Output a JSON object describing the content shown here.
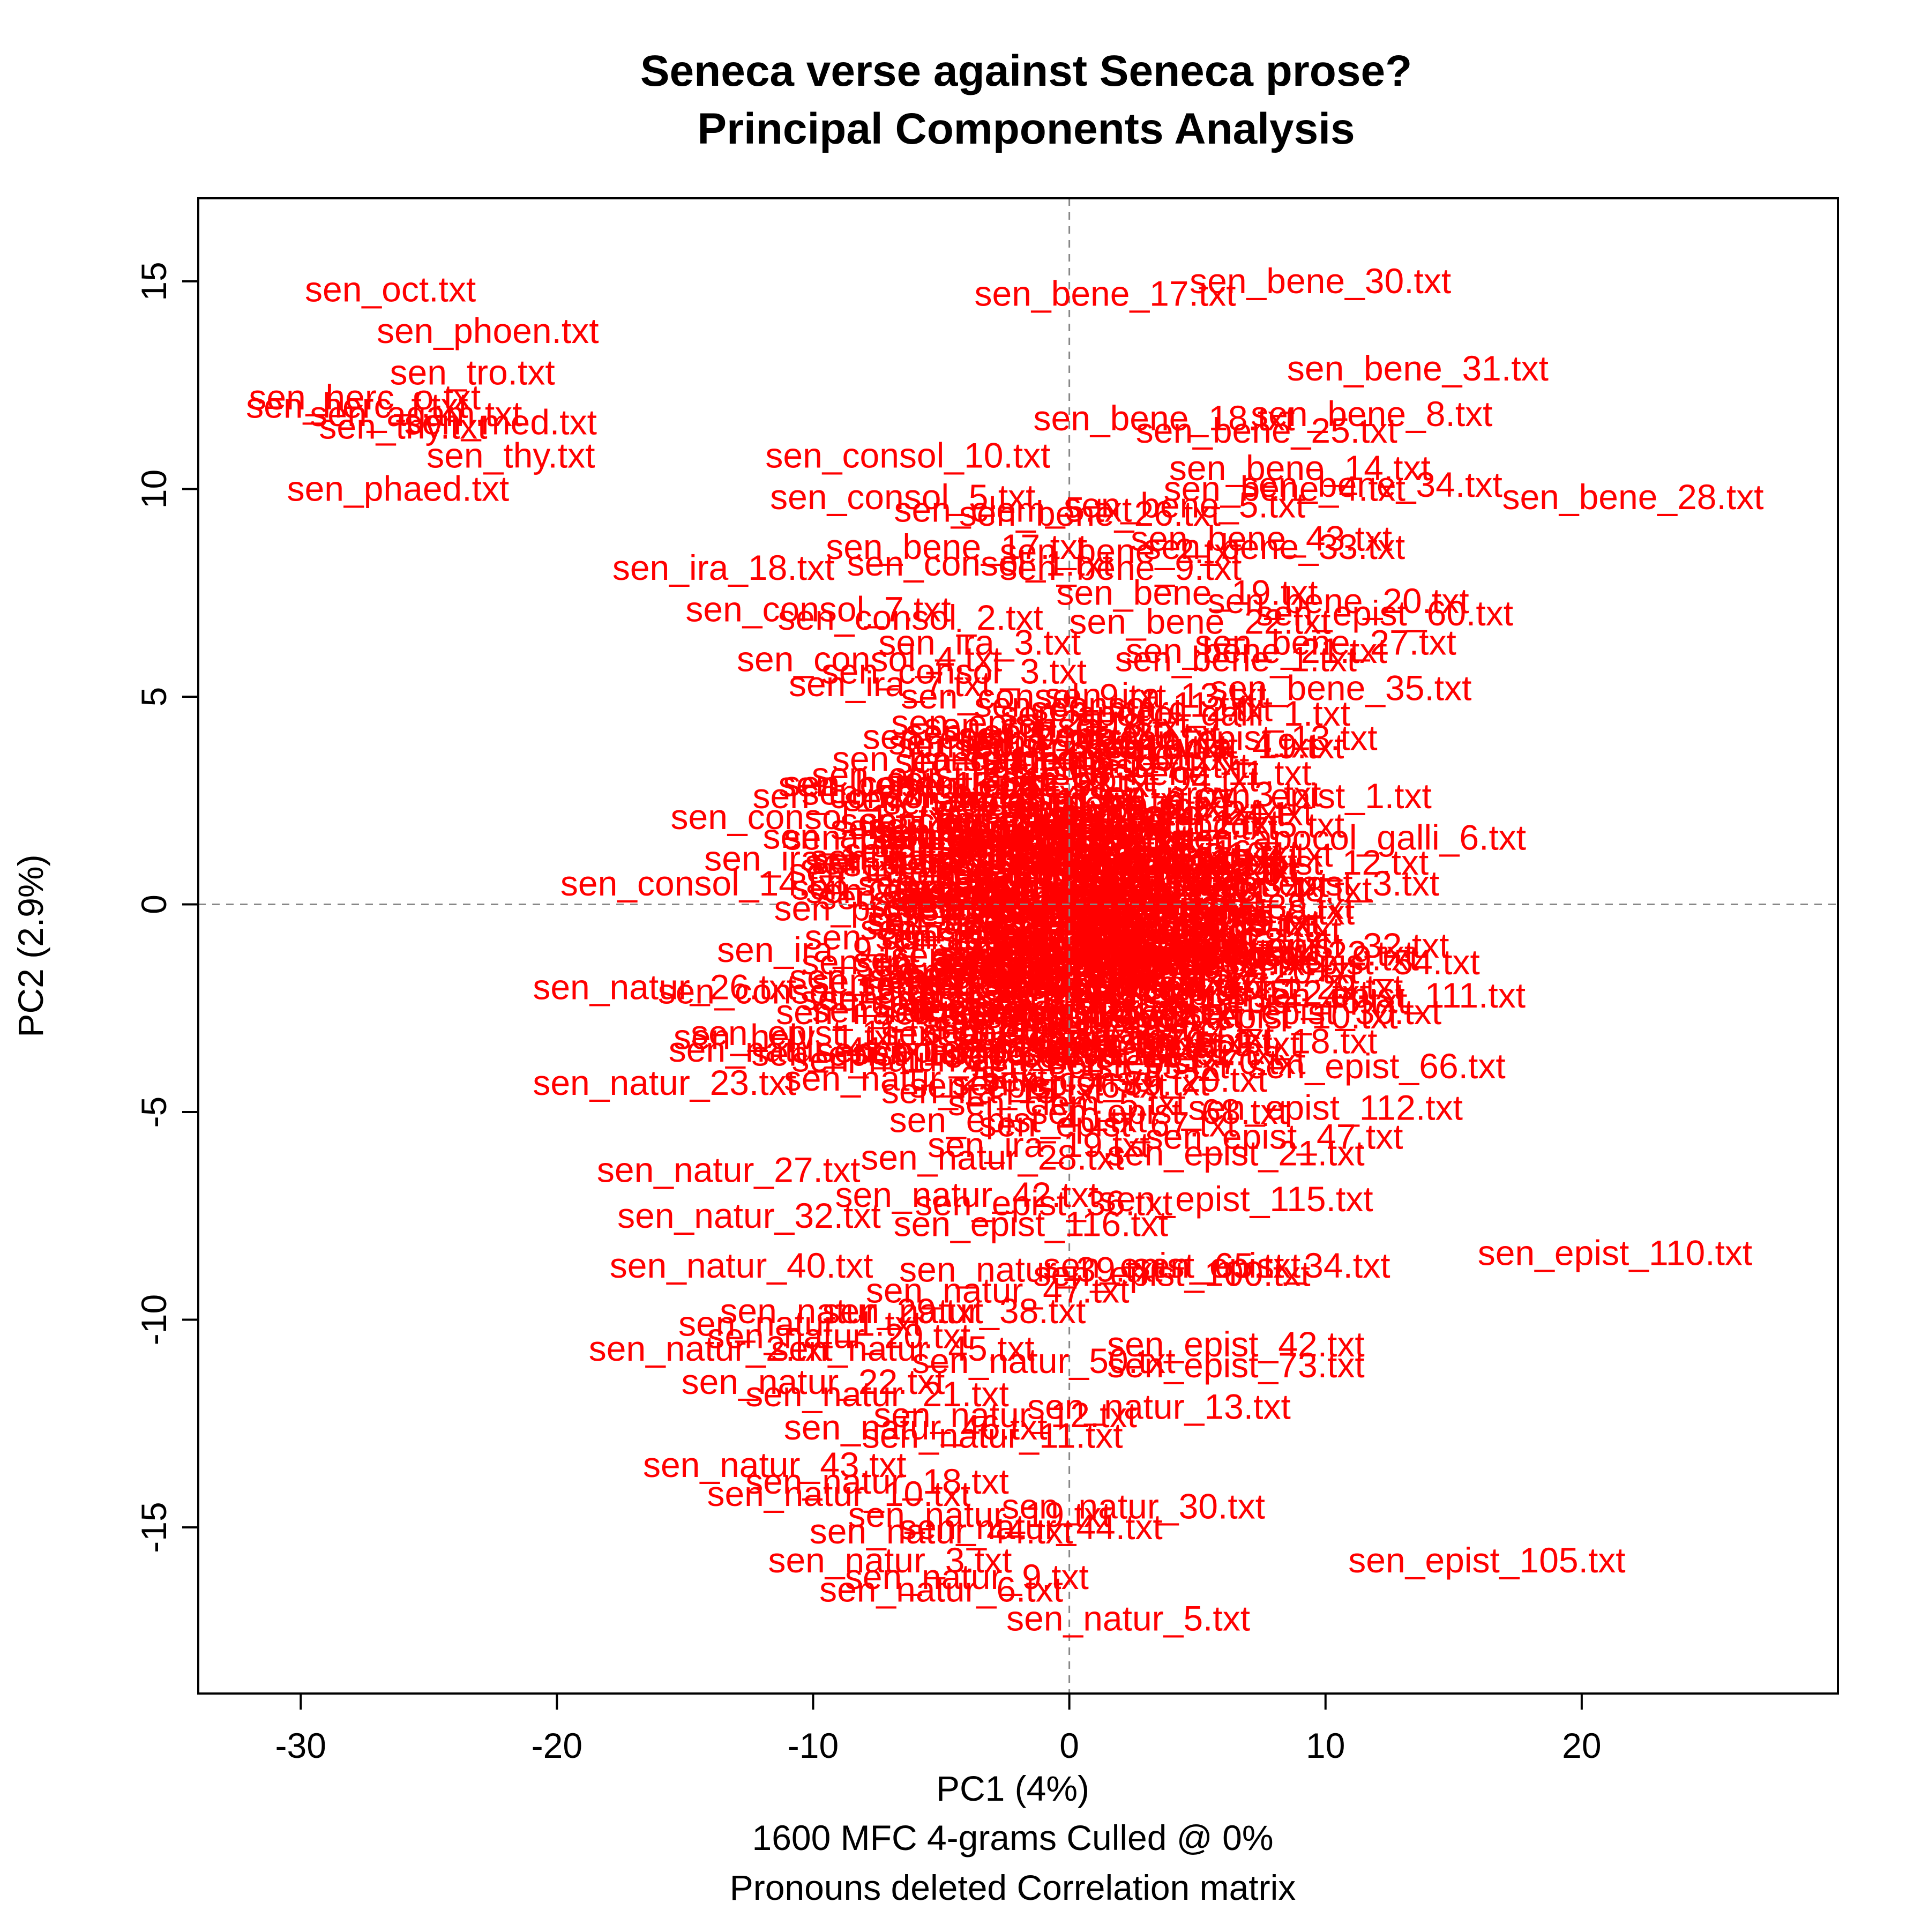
{
  "chart_data": {
    "type": "scatter",
    "title": [
      "Seneca verse against Seneca prose?",
      "Principal Components Analysis"
    ],
    "xlabel": "PC1 (4%)",
    "ylabel": "PC2 (2.9%)",
    "subtitle": [
      "1600 MFC 4-grams Culled @ 0%",
      "Pronouns deleted Correlation matrix"
    ],
    "xlim": [
      -34,
      30
    ],
    "ylim": [
      -19,
      17
    ],
    "xticks": [
      -30,
      -20,
      -10,
      0,
      10,
      20
    ],
    "xtick_labels": [
      "-30",
      "-20",
      "-10",
      "0",
      "10",
      "20"
    ],
    "yticks": [
      -15,
      -10,
      -5,
      0,
      5,
      10,
      15
    ],
    "ytick_labels": [
      "-15",
      "-10",
      "-5",
      "0",
      "5",
      "10",
      "15"
    ],
    "zero_lines": true,
    "grid": false,
    "label_color": "#ff0000",
    "points": [
      {
        "x": -26.5,
        "y": 14.8,
        "label": "sen_oct.txt"
      },
      {
        "x": -22.7,
        "y": 13.8,
        "label": "sen_phoen.txt"
      },
      {
        "x": -23.3,
        "y": 12.8,
        "label": "sen_tro.txt"
      },
      {
        "x": -27.5,
        "y": 12.2,
        "label": "sen_herc_o.txt"
      },
      {
        "x": -27.8,
        "y": 12.0,
        "label": "sen_herc_f.txt"
      },
      {
        "x": -25.5,
        "y": 11.8,
        "label": "sen_agam.txt"
      },
      {
        "x": -22.2,
        "y": 11.6,
        "label": "sen_med.txt"
      },
      {
        "x": -26.0,
        "y": 11.5,
        "label": "sen_thy.txt"
      },
      {
        "x": -21.8,
        "y": 10.8,
        "label": "sen_thy.txt"
      },
      {
        "x": -26.2,
        "y": 10.0,
        "label": "sen_phaed.txt"
      },
      {
        "x": 1.4,
        "y": 14.7,
        "label": "sen_bene_17.txt"
      },
      {
        "x": 9.8,
        "y": 15.0,
        "label": "sen_bene_30.txt"
      },
      {
        "x": 13.6,
        "y": 12.9,
        "label": "sen_bene_31.txt"
      },
      {
        "x": 3.7,
        "y": 11.7,
        "label": "sen_bene_18.txt"
      },
      {
        "x": 11.8,
        "y": 11.8,
        "label": "sen_bene_8.txt"
      },
      {
        "x": 7.7,
        "y": 11.4,
        "label": "sen_bene_25.txt"
      },
      {
        "x": 9.0,
        "y": 10.5,
        "label": "sen_bene_14.txt"
      },
      {
        "x": 8.4,
        "y": 10.0,
        "label": "sen_bene_4.txt"
      },
      {
        "x": 11.8,
        "y": 10.1,
        "label": "sen_bene_34.txt"
      },
      {
        "x": 22.0,
        "y": 9.8,
        "label": "sen_bene_28.txt"
      },
      {
        "x": 4.5,
        "y": 9.6,
        "label": "sen_bene_5.txt"
      },
      {
        "x": -6.3,
        "y": 10.8,
        "label": "sen_consol_10.txt"
      },
      {
        "x": -6.5,
        "y": 9.8,
        "label": "sen_consol_5.txt"
      },
      {
        "x": -2.2,
        "y": 9.5,
        "label": "sen_clem_5.txt"
      },
      {
        "x": 0.8,
        "y": 9.4,
        "label": "sen_bene_26.txt"
      },
      {
        "x": 7.5,
        "y": 8.8,
        "label": "sen_bene_43.txt"
      },
      {
        "x": 8.0,
        "y": 8.6,
        "label": "sen_bene_33.txt"
      },
      {
        "x": -4.4,
        "y": 8.6,
        "label": "sen_bene_17.txt"
      },
      {
        "x": 2.0,
        "y": 8.5,
        "label": "sen_bene_2.txt"
      },
      {
        "x": -13.5,
        "y": 8.1,
        "label": "sen_ira_18.txt"
      },
      {
        "x": -3.5,
        "y": 8.2,
        "label": "sen_consol_1.txt"
      },
      {
        "x": 2.0,
        "y": 8.1,
        "label": "sen_bene_9.txt"
      },
      {
        "x": 4.6,
        "y": 7.5,
        "label": "sen_bene_19.txt"
      },
      {
        "x": 10.5,
        "y": 7.3,
        "label": "sen_bene_20.txt"
      },
      {
        "x": -9.8,
        "y": 7.1,
        "label": "sen_consol_7.txt"
      },
      {
        "x": 12.3,
        "y": 7.0,
        "label": "sen_epist_60.txt"
      },
      {
        "x": -6.2,
        "y": 6.9,
        "label": "sen_consol_2.txt"
      },
      {
        "x": 5.1,
        "y": 6.8,
        "label": "sen_bene_22.txt"
      },
      {
        "x": 10.0,
        "y": 6.3,
        "label": "sen_bene_27.txt"
      },
      {
        "x": -3.5,
        "y": 6.3,
        "label": "sen_ira_3.txt"
      },
      {
        "x": 7.3,
        "y": 6.1,
        "label": "sen_bene_21.txt"
      },
      {
        "x": 6.5,
        "y": 5.9,
        "label": "sen_bene_1.txt"
      },
      {
        "x": -7.8,
        "y": 5.9,
        "label": "sen_consol_4.txt"
      },
      {
        "x": -4.5,
        "y": 5.6,
        "label": "sen_consol_3.txt"
      },
      {
        "x": -7.0,
        "y": 5.3,
        "label": "sen_ira_7.txt"
      },
      {
        "x": 10.6,
        "y": 5.2,
        "label": "sen_bene_35.txt"
      },
      {
        "x": -1.4,
        "y": 5.0,
        "label": "sen_consol_9.txt"
      },
      {
        "x": 1.8,
        "y": 4.8,
        "label": "sen_consol_11.txt"
      },
      {
        "x": -0.5,
        "y": 4.3,
        "label": "sen_consol_8.txt"
      },
      {
        "x": 7.0,
        "y": 4.0,
        "label": "sen_epist_13.txt"
      },
      {
        "x": 5.7,
        "y": 3.8,
        "label": "sen_epist_19.txt"
      },
      {
        "x": -2.3,
        "y": 3.9,
        "label": "sen_tranq_2.txt"
      },
      {
        "x": -4.5,
        "y": 3.5,
        "label": "sen_tranq_1.txt"
      },
      {
        "x": -2.8,
        "y": 3.0,
        "label": "sen_ira_12.txt"
      },
      {
        "x": -6.0,
        "y": 2.9,
        "label": "sen_consol_6.txt"
      },
      {
        "x": 9.5,
        "y": 2.6,
        "label": "sen_epist_1.txt"
      },
      {
        "x": -6.8,
        "y": 2.6,
        "label": "sen_consol_12.txt"
      },
      {
        "x": -10.0,
        "y": 2.1,
        "label": "sen_consol_13.txt"
      },
      {
        "x": -4.3,
        "y": 2.0,
        "label": "sen_clem_1.txt"
      },
      {
        "x": 11.0,
        "y": 1.6,
        "label": "sen_apocol_galli_6.txt"
      },
      {
        "x": -6.5,
        "y": 1.6,
        "label": "sen_clem_2.txt"
      },
      {
        "x": 9.0,
        "y": 1.0,
        "label": "sen_epist_12.txt"
      },
      {
        "x": -10.3,
        "y": 1.1,
        "label": "sen_ira_1.txt"
      },
      {
        "x": -7.0,
        "y": 0.8,
        "label": "sen_ira_4.txt"
      },
      {
        "x": 9.8,
        "y": 0.5,
        "label": "sen_epist_3.txt"
      },
      {
        "x": -14.3,
        "y": 0.5,
        "label": "sen_consol_14.txt"
      },
      {
        "x": -6.2,
        "y": 0.4,
        "label": "sen_clem_3.txt"
      },
      {
        "x": -7.0,
        "y": -0.1,
        "label": "sen_prov_1.txt"
      },
      {
        "x": 6.5,
        "y": -0.2,
        "label": "sen_epist_8.txt"
      },
      {
        "x": -5.5,
        "y": -0.8,
        "label": "sen_const_1.txt"
      },
      {
        "x": 9.8,
        "y": -1.0,
        "label": "sen_epist_32.txt"
      },
      {
        "x": -9.8,
        "y": -1.1,
        "label": "sen_ira_9.txt"
      },
      {
        "x": 9.0,
        "y": -1.3,
        "label": "sen_epist_9.txt"
      },
      {
        "x": -6.5,
        "y": -1.4,
        "label": "sen_ira_2.txt"
      },
      {
        "x": 11.0,
        "y": -1.4,
        "label": "sen_epist_54.txt"
      },
      {
        "x": -15.8,
        "y": -2.0,
        "label": "sen_natur_26.txt"
      },
      {
        "x": -10.5,
        "y": -2.1,
        "label": "sen_consol_15.txt"
      },
      {
        "x": 8.0,
        "y": -2.0,
        "label": "sen_epist_29.txt"
      },
      {
        "x": 12.5,
        "y": -2.2,
        "label": "sen_epist_111.txt"
      },
      {
        "x": -7.5,
        "y": -2.6,
        "label": "sen_ira_6.txt"
      },
      {
        "x": 7.8,
        "y": -2.7,
        "label": "sen_epist_10.txt"
      },
      {
        "x": 9.5,
        "y": -2.6,
        "label": "sen_epist_30.txt"
      },
      {
        "x": -9.8,
        "y": -3.1,
        "label": "sen_epist_11.txt"
      },
      {
        "x": -11.0,
        "y": -3.2,
        "label": "sen_helv_1.txt"
      },
      {
        "x": 7.0,
        "y": -3.3,
        "label": "sen_epist_18.txt"
      },
      {
        "x": -10.5,
        "y": -3.5,
        "label": "sen_natur_41.txt"
      },
      {
        "x": -7.0,
        "y": -3.6,
        "label": "sen_epist_107.txt"
      },
      {
        "x": 4.2,
        "y": -3.8,
        "label": "sen_epist_70.txt"
      },
      {
        "x": 12.0,
        "y": -3.9,
        "label": "sen_epist_66.txt"
      },
      {
        "x": 1.2,
        "y": -3.9,
        "label": "sen_epist_55.txt"
      },
      {
        "x": -15.8,
        "y": -4.3,
        "label": "sen_natur_23.txt"
      },
      {
        "x": -6.0,
        "y": -4.2,
        "label": "sen_natur_25.txt"
      },
      {
        "x": -3.0,
        "y": -4.5,
        "label": "sen_ira_15.txt"
      },
      {
        "x": 10.0,
        "y": -4.9,
        "label": "sen_epist_112.txt"
      },
      {
        "x": 3.5,
        "y": -5.0,
        "label": "sen_epist_68.txt"
      },
      {
        "x": -2.0,
        "y": -5.2,
        "label": "sen_epist_40.txt"
      },
      {
        "x": 1.5,
        "y": -5.3,
        "label": "sen_epist_67.txt"
      },
      {
        "x": 8.0,
        "y": -5.6,
        "label": "sen_epist_47.txt"
      },
      {
        "x": -1.2,
        "y": -5.8,
        "label": "sen_ira_19.txt"
      },
      {
        "x": 6.5,
        "y": -6.0,
        "label": "sen_epist_21.txt"
      },
      {
        "x": -3.0,
        "y": -6.1,
        "label": "sen_natur_28.txt"
      },
      {
        "x": -13.3,
        "y": -6.4,
        "label": "sen_natur_27.txt"
      },
      {
        "x": -4.0,
        "y": -7.0,
        "label": "sen_natur_42.txt"
      },
      {
        "x": 6.5,
        "y": -7.1,
        "label": "sen_epist_115.txt"
      },
      {
        "x": -1.0,
        "y": -7.2,
        "label": "sen_epist_36.txt"
      },
      {
        "x": -12.5,
        "y": -7.5,
        "label": "sen_natur_32.txt"
      },
      {
        "x": -1.5,
        "y": -7.7,
        "label": "sen_epist_116.txt"
      },
      {
        "x": -12.8,
        "y": -8.7,
        "label": "sen_natur_40.txt"
      },
      {
        "x": -1.5,
        "y": -8.8,
        "label": "sen_natur_39.txt"
      },
      {
        "x": 4.0,
        "y": -8.7,
        "label": "sen_epist_65.txt"
      },
      {
        "x": 7.5,
        "y": -8.7,
        "label": "sen_epist_34.txt"
      },
      {
        "x": 4.0,
        "y": -8.9,
        "label": "sen_epist_100.txt"
      },
      {
        "x": 21.3,
        "y": -8.4,
        "label": "sen_epist_110.txt"
      },
      {
        "x": -2.8,
        "y": -9.3,
        "label": "sen_natur_47.txt"
      },
      {
        "x": -8.5,
        "y": -9.8,
        "label": "sen_natur_29.txt"
      },
      {
        "x": -4.5,
        "y": -9.8,
        "label": "sen_natur_38.txt"
      },
      {
        "x": -10.5,
        "y": -10.1,
        "label": "sen_natur_1.txt"
      },
      {
        "x": -9.0,
        "y": -10.4,
        "label": "sen_natur_20.txt"
      },
      {
        "x": -14.0,
        "y": -10.7,
        "label": "sen_natur_2.txt"
      },
      {
        "x": -6.5,
        "y": -10.7,
        "label": "sen_natur_45.txt"
      },
      {
        "x": 6.5,
        "y": -10.6,
        "label": "sen_epist_42.txt"
      },
      {
        "x": -1.0,
        "y": -11.0,
        "label": "sen_natur_50.txt"
      },
      {
        "x": 6.5,
        "y": -11.1,
        "label": "sen_epist_73.txt"
      },
      {
        "x": -10.0,
        "y": -11.5,
        "label": "sen_natur_22.txt"
      },
      {
        "x": -7.5,
        "y": -11.8,
        "label": "sen_natur_21.txt"
      },
      {
        "x": 3.5,
        "y": -12.1,
        "label": "sen_natur_13.txt"
      },
      {
        "x": -2.5,
        "y": -12.3,
        "label": "sen_natur_12.txt"
      },
      {
        "x": -6.0,
        "y": -12.6,
        "label": "sen_natur_46.txt"
      },
      {
        "x": -3.0,
        "y": -12.8,
        "label": "sen_natur_11.txt"
      },
      {
        "x": -11.5,
        "y": -13.5,
        "label": "sen_natur_43.txt"
      },
      {
        "x": -7.5,
        "y": -13.9,
        "label": "sen_natur_18.txt"
      },
      {
        "x": -9.0,
        "y": -14.2,
        "label": "sen_natur_10.txt"
      },
      {
        "x": -3.5,
        "y": -14.7,
        "label": "sen_natur_19.txt"
      },
      {
        "x": 2.5,
        "y": -14.5,
        "label": "sen_natur_30.txt"
      },
      {
        "x": -5.0,
        "y": -15.1,
        "label": "sen_natur_44.txt"
      },
      {
        "x": -1.5,
        "y": -15.0,
        "label": "sen_natur_44.txt"
      },
      {
        "x": 16.3,
        "y": -15.8,
        "label": "sen_epist_105.txt"
      },
      {
        "x": -7.0,
        "y": -15.8,
        "label": "sen_natur_3.txt"
      },
      {
        "x": -4.0,
        "y": -16.2,
        "label": "sen_natur_9.txt"
      },
      {
        "x": -5.0,
        "y": -16.5,
        "label": "sen_natur_6.txt"
      },
      {
        "x": 2.3,
        "y": -17.2,
        "label": "sen_natur_5.txt"
      }
    ],
    "dense_core": {
      "x_range": [
        -8,
        10
      ],
      "y_range": [
        -6,
        6
      ],
      "labels": [
        "sen_ira_1.txt",
        "sen_ira_2.txt",
        "sen_ira_3.txt",
        "sen_ira_4.txt",
        "sen_ira_5.txt",
        "sen_ira_6.txt",
        "sen_ira_7.txt",
        "sen_ira_8.txt",
        "sen_ira_9.txt",
        "sen_ira_10.txt",
        "sen_ira_11.txt",
        "sen_ira_12.txt",
        "sen_ira_13.txt",
        "sen_ira_14.txt",
        "sen_ira_15.txt",
        "sen_ira_16.txt",
        "sen_ira_17.txt",
        "sen_clem_1.txt",
        "sen_clem_2.txt",
        "sen_clem_3.txt",
        "sen_clem_4.txt",
        "sen_clem_5.txt",
        "sen_brev_1.txt",
        "sen_brev_2.txt",
        "sen_brev_3.txt",
        "sen_brev_4.txt",
        "sen_vita_1.txt",
        "sen_vita_2.txt",
        "sen_vita_3.txt",
        "sen_vita_4.txt",
        "sen_otio_1.txt",
        "sen_otio_2.txt",
        "sen_tranq_1.txt",
        "sen_tranq_2.txt",
        "sen_tranq_3.txt",
        "sen_tranq_4.txt",
        "sen_tranq_5.txt",
        "sen_const_1.txt",
        "sen_const_2.txt",
        "sen_const_3.txt",
        "sen_prov_1.txt",
        "sen_prov_2.txt",
        "sen_prov_3.txt",
        "sen_epist_2.txt",
        "sen_epist_4.txt",
        "sen_epist_5.txt",
        "sen_epist_6.txt",
        "sen_epist_7.txt",
        "sen_epist_14.txt",
        "sen_epist_15.txt",
        "sen_epist_16.txt",
        "sen_epist_17.txt",
        "sen_epist_20.txt",
        "sen_epist_22.txt",
        "sen_epist_23.txt",
        "sen_epist_24.txt",
        "sen_epist_25.txt",
        "sen_epist_26.txt",
        "sen_epist_27.txt",
        "sen_epist_28.txt",
        "sen_epist_31.txt",
        "sen_epist_33.txt",
        "sen_epist_35.txt",
        "sen_epist_37.txt",
        "sen_epist_38.txt",
        "sen_epist_39.txt",
        "sen_epist_41.txt",
        "sen_epist_43.txt",
        "sen_epist_44.txt",
        "sen_epist_45.txt",
        "sen_epist_46.txt",
        "sen_epist_48.txt",
        "sen_epist_49.txt",
        "sen_epist_50.txt",
        "sen_epist_51.txt",
        "sen_epist_52.txt",
        "sen_epist_53.txt",
        "sen_epist_56.txt",
        "sen_epist_57.txt",
        "sen_epist_58.txt",
        "sen_epist_59.txt",
        "sen_epist_61.txt",
        "sen_epist_62.txt",
        "sen_epist_63.txt",
        "sen_epist_64.txt",
        "sen_epist_69.txt",
        "sen_epist_71.txt",
        "sen_epist_72.txt",
        "sen_epist_74.txt",
        "sen_epist_75.txt",
        "sen_epist_76.txt",
        "sen_epist_77.txt",
        "sen_epist_78.txt",
        "sen_epist_79.txt",
        "sen_epist_80.txt",
        "sen_epist_81.txt",
        "sen_epist_82.txt",
        "sen_epist_83.txt",
        "sen_epist_84.txt",
        "sen_epist_85.txt",
        "sen_epist_86.txt",
        "sen_epist_87.txt",
        "sen_epist_88.txt",
        "sen_epist_89.txt",
        "sen_epist_90.txt",
        "sen_epist_91.txt",
        "sen_epist_92.txt",
        "sen_epist_93.txt",
        "sen_epist_94.txt",
        "sen_epist_95.txt",
        "sen_epist_96.txt",
        "sen_epist_97.txt",
        "sen_epist_98.txt",
        "sen_epist_99.txt",
        "sen_epist_101.txt",
        "sen_epist_102.txt",
        "sen_epist_103.txt",
        "sen_epist_104.txt",
        "sen_epist_106.txt",
        "sen_epist_108.txt",
        "sen_epist_109.txt",
        "sen_epist_113.txt",
        "sen_epist_114.txt",
        "sen_epist_117.txt",
        "sen_epist_118.txt",
        "sen_epist_119.txt",
        "sen_epist_120.txt",
        "sen_epist_121.txt",
        "sen_epist_122.txt",
        "sen_epist_123.txt",
        "sen_epist_124.txt",
        "sen_helv_2.txt",
        "sen_helv_3.txt",
        "sen_polyb_1.txt",
        "sen_polyb_2.txt",
        "sen_marc_1.txt",
        "sen_marc_2.txt",
        "sen_marc_3.txt",
        "sen_bene_3.txt",
        "sen_bene_6.txt",
        "sen_bene_7.txt",
        "sen_bene_10.txt",
        "sen_bene_11.txt",
        "sen_bene_12.txt",
        "sen_bene_13.txt",
        "sen_bene_15.txt",
        "sen_bene_16.txt",
        "sen_bene_23.txt",
        "sen_bene_24.txt",
        "sen_bene_29.txt",
        "sen_bene_32.txt",
        "sen_bene_36.txt",
        "sen_bene_37.txt",
        "sen_bene_38.txt",
        "sen_bene_39.txt",
        "sen_bene_40.txt",
        "sen_bene_41.txt",
        "sen_bene_42.txt",
        "sen_natur_4.txt",
        "sen_natur_7.txt",
        "sen_natur_8.txt",
        "sen_natur_14.txt",
        "sen_natur_15.txt",
        "sen_natur_16.txt",
        "sen_natur_17.txt",
        "sen_natur_24.txt",
        "sen_natur_31.txt",
        "sen_natur_33.txt",
        "sen_natur_34.txt",
        "sen_natur_35.txt",
        "sen_natur_36.txt",
        "sen_natur_37.txt",
        "sen_natur_48.txt",
        "sen_natur_49.txt",
        "sen_apocol_1.txt",
        "sen_apocol_2.txt",
        "sen_apocol_3.txt",
        "sen_apocol_4.txt",
        "sen_apocol_5.txt",
        "sen_apocol_galli_1.txt",
        "sen_apocol_galli_2.txt",
        "sen_apocol_galli_3.txt",
        "sen_apocol_galli_4.txt",
        "sen_apocol_galli_5.txt",
        "sen_consol_16.txt",
        "sen_consol_17.txt",
        "sen_consol_18.txt",
        "sen_consol_19.txt",
        "sen_consol_20.txt",
        "sen_consol_21.txt",
        "sen_consol_22.txt",
        "sen_consol_23.txt",
        "sen_consol_24.txt",
        "sen_consol_25.txt"
      ]
    }
  }
}
